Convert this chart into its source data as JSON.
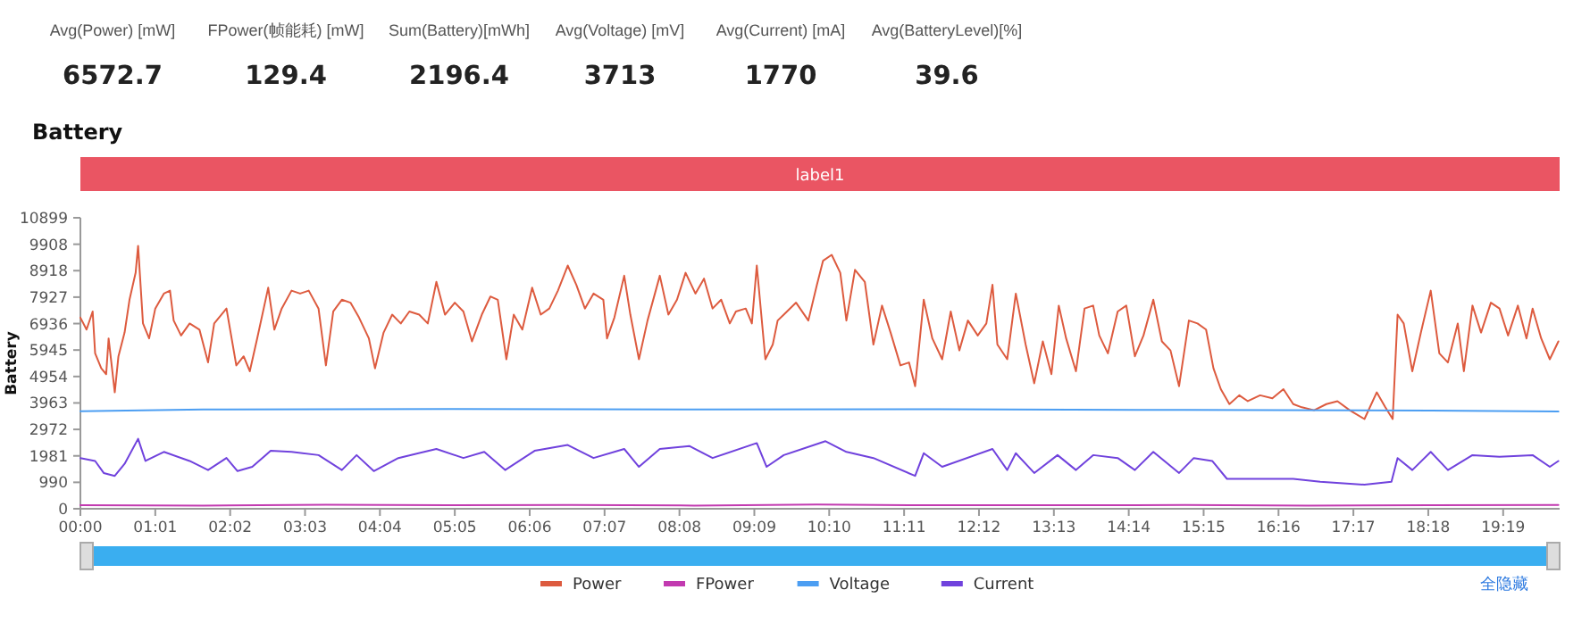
{
  "chart_data": [
    {
      "type": "other",
      "categories": [
        "Avg(Power) [mW]",
        "FPower(帧能耗) [mW]",
        "Sum(Battery)[mWh]",
        "Avg(Voltage) [mV]",
        "Avg(Current) [mA]",
        "Avg(BatteryLevel)[%]"
      ],
      "values": [
        6572.7,
        129.4,
        2196.4,
        3713,
        1770,
        39.6
      ],
      "data_labels": true
    },
    {
      "type": "line",
      "title": "Battery",
      "ylabel": "Battery",
      "xlim": [
        0,
        1205
      ],
      "xticks": [
        {
          "value": 0,
          "label": "00:00"
        },
        {
          "value": 61,
          "label": "01:01"
        },
        {
          "value": 122,
          "label": "02:02"
        },
        {
          "value": 183,
          "label": "03:03"
        },
        {
          "value": 244,
          "label": "04:04"
        },
        {
          "value": 305,
          "label": "05:05"
        },
        {
          "value": 366,
          "label": "06:06"
        },
        {
          "value": 427,
          "label": "07:07"
        },
        {
          "value": 488,
          "label": "08:08"
        },
        {
          "value": 549,
          "label": "09:09"
        },
        {
          "value": 610,
          "label": "10:10"
        },
        {
          "value": 671,
          "label": "11:11"
        },
        {
          "value": 732,
          "label": "12:12"
        },
        {
          "value": 793,
          "label": "13:13"
        },
        {
          "value": 854,
          "label": "14:14"
        },
        {
          "value": 915,
          "label": "15:15"
        },
        {
          "value": 976,
          "label": "16:16"
        },
        {
          "value": 1037,
          "label": "17:17"
        },
        {
          "value": 1098,
          "label": "18:18"
        },
        {
          "value": 1159,
          "label": "19:19"
        }
      ],
      "ylim": [
        0,
        10899
      ],
      "yticks": [
        0,
        990,
        1981,
        2972,
        3963,
        4954,
        5945,
        6936,
        7927,
        8918,
        9908,
        10899
      ],
      "legend": "bottom",
      "annotations": [
        "label1",
        "全隐藏"
      ],
      "series": [
        {
          "name": "Power",
          "color": "#dd5b3f",
          "x": [
            0,
            5,
            10,
            12,
            17,
            21,
            23,
            28,
            31,
            36,
            40,
            45,
            47,
            51,
            56,
            61,
            68,
            73,
            76,
            82,
            89,
            97,
            104,
            109,
            119,
            127,
            133,
            138,
            144,
            153,
            158,
            164,
            172,
            179,
            186,
            194,
            200,
            206,
            213,
            220,
            227,
            235,
            240,
            247,
            254,
            261,
            268,
            276,
            283,
            290,
            297,
            305,
            312,
            319,
            327,
            334,
            340,
            347,
            353,
            360,
            368,
            375,
            382,
            389,
            397,
            404,
            411,
            418,
            426,
            429,
            435,
            443,
            448,
            455,
            462,
            472,
            479,
            486,
            493,
            501,
            508,
            515,
            522,
            529,
            534,
            542,
            547,
            551,
            558,
            564,
            568,
            573,
            583,
            593,
            600,
            605,
            612,
            619,
            624,
            631,
            639,
            646,
            653,
            660,
            668,
            675,
            680,
            687,
            694,
            702,
            709,
            716,
            723,
            731,
            738,
            743,
            747,
            755,
            762,
            770,
            777,
            784,
            791,
            797,
            803,
            811,
            818,
            825,
            830,
            837,
            845,
            852,
            859,
            866,
            874,
            881,
            888,
            895,
            903,
            910,
            917,
            923,
            929,
            936,
            944,
            951,
            961,
            971,
            980,
            988,
            995,
            1005,
            1015,
            1024,
            1034,
            1046,
            1056,
            1063,
            1069,
            1073,
            1078,
            1085,
            1092,
            1100,
            1107,
            1114,
            1122,
            1127,
            1134,
            1141,
            1149,
            1156,
            1163,
            1171,
            1178,
            1183,
            1190,
            1197,
            1204
          ],
          "values": [
            7160,
            6710,
            7390,
            5820,
            5260,
            5040,
            6380,
            4360,
            5710,
            6600,
            7830,
            8840,
            9850,
            6940,
            6380,
            7500,
            8060,
            8170,
            7050,
            6490,
            6940,
            6710,
            5480,
            6940,
            7500,
            5370,
            5710,
            5150,
            6380,
            8280,
            6710,
            7500,
            8170,
            8060,
            8170,
            7500,
            5370,
            7390,
            7830,
            7720,
            7160,
            6380,
            5260,
            6600,
            7270,
            6940,
            7390,
            7270,
            6940,
            8500,
            7270,
            7720,
            7390,
            6270,
            7270,
            7950,
            7830,
            5600,
            7270,
            6710,
            8280,
            7270,
            7500,
            8170,
            9110,
            8390,
            7500,
            8060,
            7830,
            6380,
            7160,
            8730,
            7270,
            5600,
            7050,
            8730,
            7270,
            7830,
            8840,
            8060,
            8620,
            7500,
            7830,
            6940,
            7390,
            7500,
            6940,
            9110,
            5600,
            6150,
            7050,
            7270,
            7720,
            7050,
            8390,
            9290,
            9510,
            8840,
            7050,
            8950,
            8500,
            6150,
            7610,
            6600,
            5370,
            5480,
            4590,
            7830,
            6380,
            5600,
            7390,
            5930,
            7050,
            6490,
            6940,
            8390,
            6150,
            5600,
            8060,
            6150,
            4700,
            6270,
            5040,
            7610,
            6380,
            5150,
            7500,
            7610,
            6490,
            5820,
            7390,
            7610,
            5710,
            6490,
            7830,
            6270,
            5930,
            4590,
            7050,
            6940,
            6710,
            5260,
            4480,
            3920,
            4250,
            4030,
            4250,
            4140,
            4480,
            3920,
            3800,
            3690,
            3920,
            4030,
            3690,
            3360,
            4360,
            3800,
            3360,
            7270,
            6940,
            5150,
            6600,
            8170,
            5820,
            5480,
            6940,
            5150,
            7610,
            6600,
            7720,
            7500,
            6490,
            7610,
            6380,
            7500,
            6380,
            5600,
            6270
          ]
        },
        {
          "name": "FPower",
          "color": "#c23ab0",
          "x": [
            0,
            100,
            200,
            300,
            400,
            500,
            600,
            700,
            800,
            900,
            1000,
            1100,
            1204
          ],
          "values": [
            130,
            120,
            150,
            130,
            140,
            120,
            160,
            130,
            130,
            140,
            120,
            130,
            140
          ]
        },
        {
          "name": "Voltage",
          "color": "#4c9ef2",
          "x": [
            0,
            100,
            300,
            500,
            700,
            900,
            1100,
            1204
          ],
          "values": [
            3650,
            3720,
            3740,
            3720,
            3730,
            3700,
            3680,
            3640
          ]
        },
        {
          "name": "Current",
          "color": "#7042dd",
          "x": [
            0,
            12,
            19,
            28,
            36,
            47,
            53,
            68,
            89,
            104,
            119,
            128,
            140,
            155,
            172,
            194,
            213,
            225,
            239,
            259,
            290,
            312,
            329,
            346,
            370,
            397,
            418,
            443,
            455,
            472,
            496,
            515,
            551,
            559,
            573,
            607,
            624,
            646,
            680,
            687,
            702,
            743,
            755,
            762,
            777,
            796,
            811,
            825,
            845,
            859,
            874,
            895,
            907,
            922,
            934,
            961,
            988,
            1010,
            1046,
            1068,
            1073,
            1085,
            1100,
            1114,
            1134,
            1156,
            1183,
            1197,
            1204
          ],
          "values": [
            1900,
            1790,
            1340,
            1230,
            1680,
            2620,
            1790,
            2130,
            1790,
            1450,
            1900,
            1410,
            1570,
            2170,
            2130,
            2010,
            1450,
            2010,
            1410,
            1900,
            2240,
            1900,
            2130,
            1450,
            2170,
            2390,
            1900,
            2240,
            1570,
            2240,
            2350,
            1900,
            2460,
            1570,
            2010,
            2530,
            2130,
            1900,
            1230,
            2080,
            1570,
            2240,
            1450,
            2080,
            1340,
            2010,
            1450,
            2010,
            1900,
            1450,
            2130,
            1340,
            1900,
            1790,
            1120,
            1120,
            1120,
            1010,
            900,
            1010,
            1900,
            1450,
            2130,
            1450,
            2010,
            1950,
            2010,
            1570,
            1790
          ]
        }
      ]
    }
  ]
}
